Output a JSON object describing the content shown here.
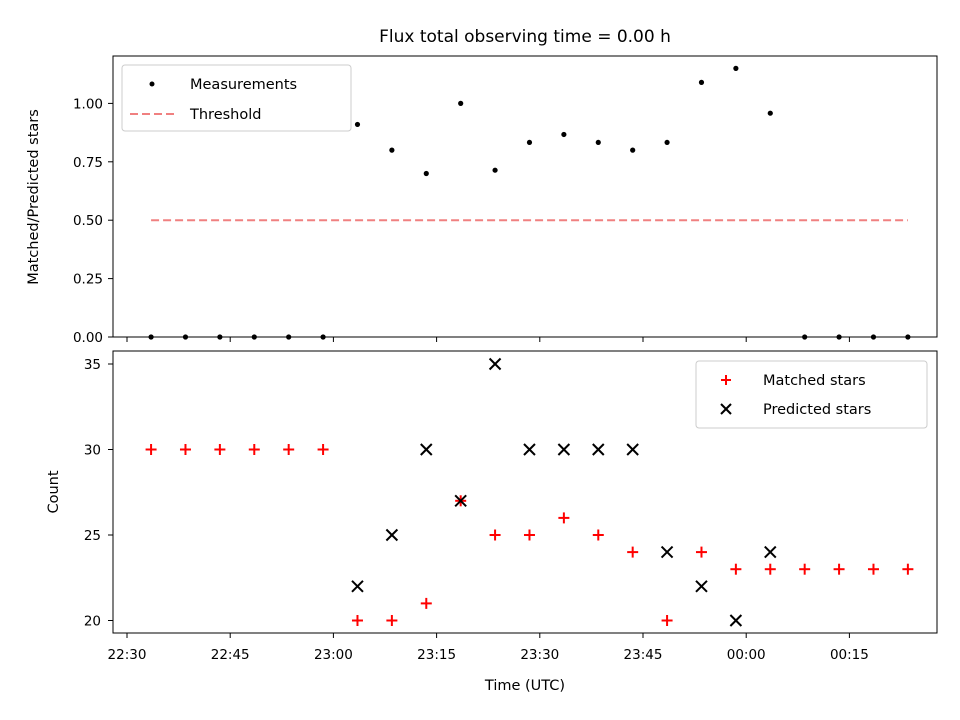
{
  "title": "Flux total observing time = 0.00 h",
  "colors": {
    "threshold": "#f08080",
    "matched": "#ff0000",
    "predicted": "#000000",
    "measurement": "#000000"
  },
  "x_tick_labels": [
    "22:30",
    "22:45",
    "23:00",
    "23:15",
    "23:30",
    "23:45",
    "00:00",
    "00:15"
  ],
  "x_tick_minutes": [
    0,
    15,
    30,
    45,
    60,
    75,
    90,
    105
  ],
  "xlabel": "Time (UTC)",
  "chart_data": [
    {
      "type": "scatter",
      "ylabel": "Matched/Predicted stars",
      "ylim": [
        0,
        1.2
      ],
      "y_ticks": [
        "0.00",
        "0.25",
        "0.50",
        "0.75",
        "1.00"
      ],
      "legend": {
        "placement": "top-left",
        "entries": [
          "Measurements",
          "Threshold"
        ]
      },
      "series": [
        {
          "name": "Measurements",
          "marker": "dot",
          "x_minutes": [
            3.5,
            8.5,
            13.5,
            18.5,
            23.5,
            28.5,
            33.5,
            38.5,
            43.5,
            48.5,
            53.5,
            58.5,
            63.5,
            68.5,
            73.5,
            78.5,
            83.5,
            88.5,
            93.5,
            98.5,
            103.5,
            108.5,
            113.5
          ],
          "values": [
            0,
            0,
            0,
            0,
            0,
            0,
            0.91,
            0.8,
            0.7,
            1.0,
            0.714,
            0.833,
            0.867,
            0.833,
            0.8,
            0.833,
            1.09,
            1.15,
            0.958,
            0,
            0,
            0,
            0
          ]
        },
        {
          "name": "Threshold",
          "style": "dashed",
          "x_minutes": [
            3.5,
            113.5
          ],
          "values": [
            0.5,
            0.5
          ]
        }
      ]
    },
    {
      "type": "scatter",
      "ylabel": "Count",
      "ylim": [
        19.25,
        35.75
      ],
      "y_ticks": [
        "20",
        "25",
        "30",
        "35"
      ],
      "legend": {
        "placement": "top-right",
        "entries": [
          "Matched stars",
          "Predicted stars"
        ]
      },
      "series": [
        {
          "name": "Matched stars",
          "marker": "plus",
          "x_minutes": [
            3.5,
            8.5,
            13.5,
            18.5,
            23.5,
            28.5,
            33.5,
            38.5,
            43.5,
            48.5,
            53.5,
            58.5,
            63.5,
            68.5,
            73.5,
            78.5,
            83.5,
            88.5,
            93.5,
            98.5,
            103.5,
            108.5,
            113.5
          ],
          "values": [
            30,
            30,
            30,
            30,
            30,
            30,
            20,
            20,
            21,
            27,
            25,
            25,
            26,
            25,
            24,
            20,
            24,
            23,
            23,
            23,
            23,
            23,
            23
          ]
        },
        {
          "name": "Predicted stars",
          "marker": "x",
          "x_minutes": [
            33.5,
            38.5,
            43.5,
            48.5,
            53.5,
            58.5,
            63.5,
            68.5,
            73.5,
            78.5,
            83.5,
            88.5,
            93.5
          ],
          "values": [
            22,
            25,
            30,
            27,
            35,
            30,
            30,
            30,
            30,
            24,
            22,
            20,
            24
          ]
        }
      ]
    }
  ]
}
